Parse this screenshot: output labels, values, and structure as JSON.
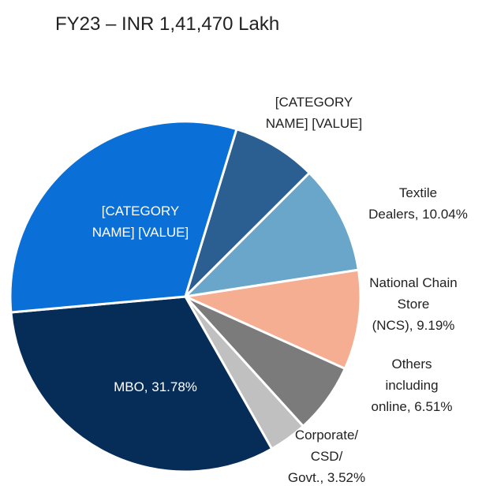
{
  "chart_data": {
    "type": "pie",
    "title": "FY23 –  INR 1,41,470 Lakh",
    "values": [
      7.8,
      10.04,
      9.19,
      6.51,
      3.52,
      31.78,
      31.16
    ],
    "labels": [
      [
        "[CATEGORY",
        "NAME] [VALUE]"
      ],
      [
        "Textile",
        "Dealers, 10.04%"
      ],
      [
        "National Chain",
        "Store",
        "(NCS), 9.19%"
      ],
      [
        "Others",
        "including",
        "online, 6.51%"
      ],
      [
        "Corporate/",
        "CSD/",
        "Govt., 3.52%"
      ],
      [
        "MBO, 31.78%"
      ],
      [
        "[CATEGORY",
        "NAME] [VALUE]"
      ]
    ],
    "colors": [
      "#2b5f91",
      "#6aa6c9",
      "#f6ae93",
      "#7b7b7b",
      "#c0c0c0",
      "#062d58",
      "#0b6fd8"
    ]
  }
}
